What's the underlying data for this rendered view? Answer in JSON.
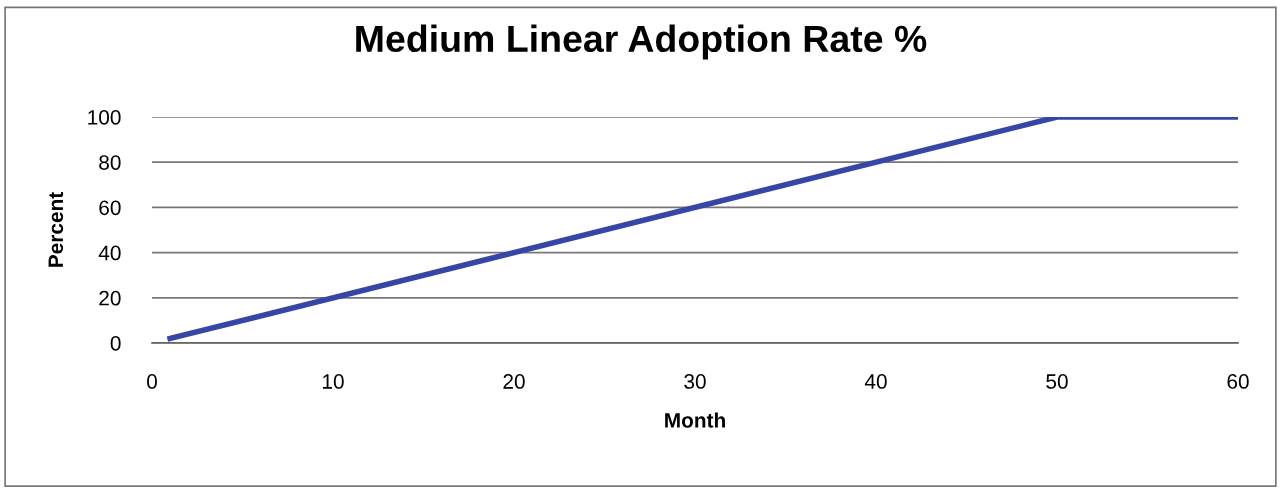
{
  "chart_data": {
    "type": "line",
    "title": "Medium Linear Adoption Rate %",
    "xlabel": "Month",
    "ylabel": "Percent",
    "series": [
      {
        "color": "#3646a8",
        "x": [
          1,
          50,
          60
        ],
        "values": [
          2,
          100,
          100
        ]
      }
    ],
    "xlim": [
      0,
      60
    ],
    "xticks": [
      0,
      10,
      20,
      30,
      40,
      50,
      60
    ],
    "ylim": [
      0,
      100
    ],
    "yticks": [
      0,
      20,
      40,
      60,
      80,
      100
    ],
    "grid": "y",
    "legend": false,
    "marker": "none",
    "line_style": "solid"
  }
}
